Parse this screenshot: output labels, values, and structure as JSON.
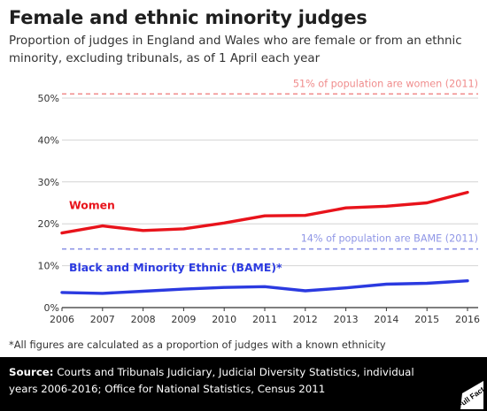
{
  "header": {
    "title": "Female and ethnic minority judges",
    "subtitle": "Proportion of judges in England and Wales who are female or from an ethnic minority, excluding tribunals, as of 1 April each year"
  },
  "chart_data": {
    "type": "line",
    "x": [
      2006,
      2007,
      2008,
      2009,
      2010,
      2011,
      2012,
      2013,
      2014,
      2015,
      2016
    ],
    "xlim": [
      2006,
      2016
    ],
    "ylim": [
      0,
      50
    ],
    "y_ticks": [
      0,
      10,
      20,
      30,
      40,
      50
    ],
    "y_tick_labels": [
      "0%",
      "10%",
      "20%",
      "30%",
      "40%",
      "50%"
    ],
    "x_tick_labels": [
      "2006",
      "2007",
      "2008",
      "2009",
      "2010",
      "2011",
      "2012",
      "2013",
      "2014",
      "2015",
      "2016"
    ],
    "grid": "horizontal",
    "series": [
      {
        "name": "Women",
        "color": "#e8131b",
        "values": [
          17.8,
          19.5,
          18.4,
          18.8,
          20.2,
          21.9,
          22.0,
          23.8,
          24.2,
          25.0,
          27.5
        ]
      },
      {
        "name": "Black and Minority Ethnic (BAME)*",
        "color": "#2b3ae0",
        "values": [
          3.6,
          3.4,
          3.9,
          4.4,
          4.8,
          5.0,
          4.0,
          4.7,
          5.6,
          5.8,
          6.4
        ]
      }
    ],
    "reference_lines": [
      {
        "label": "51% of population are women (2011)",
        "value": 51,
        "color": "#f08c8c"
      },
      {
        "label": "14% of population are BAME (2011)",
        "value": 14,
        "color": "#8f96e6"
      }
    ]
  },
  "footnote": "*All figures are calculated as a proportion of judges with a known ethnicity",
  "source": {
    "label": "Source:",
    "text": "Courts and Tribunals Judiciary, Judicial Diversity Statistics, individual years 2006-2016; Office for National Statistics, Census 2011"
  },
  "logo": {
    "text": "Full Fact",
    "icon": "full-fact-logo-icon"
  }
}
